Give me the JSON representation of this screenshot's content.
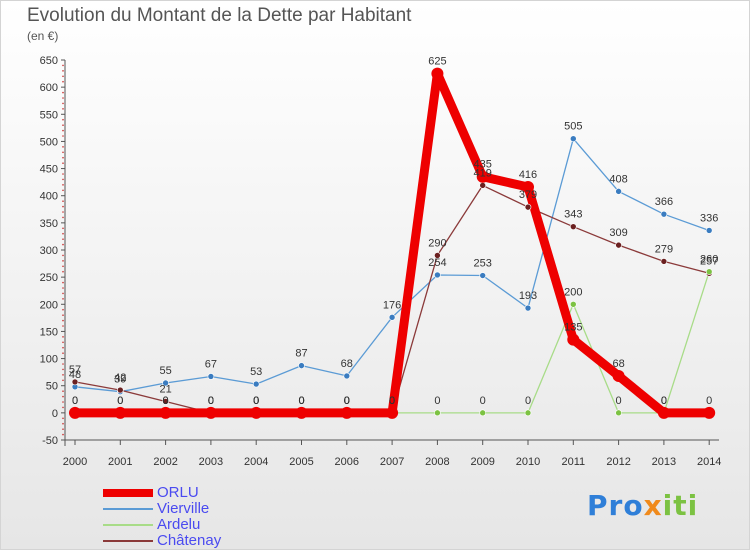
{
  "title": "Evolution du Montant de la Dette par Habitant",
  "unit": "(en €)",
  "logo": {
    "part1": "Pro",
    "part2": "x",
    "part3": "iti"
  },
  "chart_data": {
    "type": "line",
    "x": [
      "2000",
      "2001",
      "2002",
      "2003",
      "2004",
      "2005",
      "2006",
      "2007",
      "2008",
      "2009",
      "2010",
      "2011",
      "2012",
      "2013",
      "2014"
    ],
    "ylim": [
      -50,
      650
    ],
    "yticks": [
      -50,
      0,
      50,
      100,
      150,
      200,
      250,
      300,
      350,
      400,
      450,
      500,
      550,
      600,
      650
    ],
    "grid": false,
    "legend_position": "bottom-left",
    "series": [
      {
        "name": "Vierville",
        "color": "#5b9bd5",
        "marker": "#3a7cc0",
        "values": [
          48,
          39,
          55,
          67,
          53,
          87,
          68,
          176,
          254,
          253,
          193,
          505,
          408,
          366,
          336
        ],
        "labels": [
          "48",
          "39",
          "55",
          "67",
          "53",
          "87",
          "68",
          "176",
          "254",
          "253",
          "193",
          "505",
          "408",
          "366",
          "336"
        ]
      },
      {
        "name": "Châtenay",
        "color": "#8b3a3a",
        "marker": "#6b2020",
        "values": [
          57,
          42,
          21,
          0,
          0,
          0,
          0,
          0,
          290,
          419,
          379,
          343,
          309,
          279,
          257
        ],
        "labels": [
          "57",
          "42",
          "21",
          "0",
          "0",
          "0",
          "0",
          "0",
          "290",
          "419",
          "379",
          "343",
          "309",
          "279",
          "257"
        ]
      },
      {
        "name": "Ardelu",
        "color": "#a8dc88",
        "marker": "#7cc242",
        "values": [
          0,
          0,
          0,
          0,
          0,
          0,
          0,
          0,
          0,
          0,
          0,
          200,
          0,
          0,
          260
        ],
        "labels": [
          "0",
          "0",
          "0",
          "0",
          "0",
          "0",
          "0",
          "0",
          "0",
          "0",
          "0",
          "200",
          "0",
          "0",
          "260"
        ]
      },
      {
        "name": "ORLU",
        "color": "#ee0000",
        "marker": "#ee0000",
        "thick": true,
        "values": [
          0,
          0,
          0,
          0,
          0,
          0,
          0,
          0,
          625,
          435,
          416,
          135,
          68,
          0,
          0
        ],
        "labels": [
          "0",
          "0",
          "0",
          "0",
          "0",
          "0",
          "0",
          "0",
          "625",
          "435",
          "416",
          "135",
          "68",
          "0",
          "0"
        ]
      }
    ],
    "legend": [
      {
        "name": "ORLU",
        "color": "#ee0000",
        "thick": true
      },
      {
        "name": "Vierville",
        "color": "#5b9bd5"
      },
      {
        "name": "Ardelu",
        "color": "#a8dc88"
      },
      {
        "name": "Châtenay",
        "color": "#8b3a3a"
      }
    ]
  }
}
